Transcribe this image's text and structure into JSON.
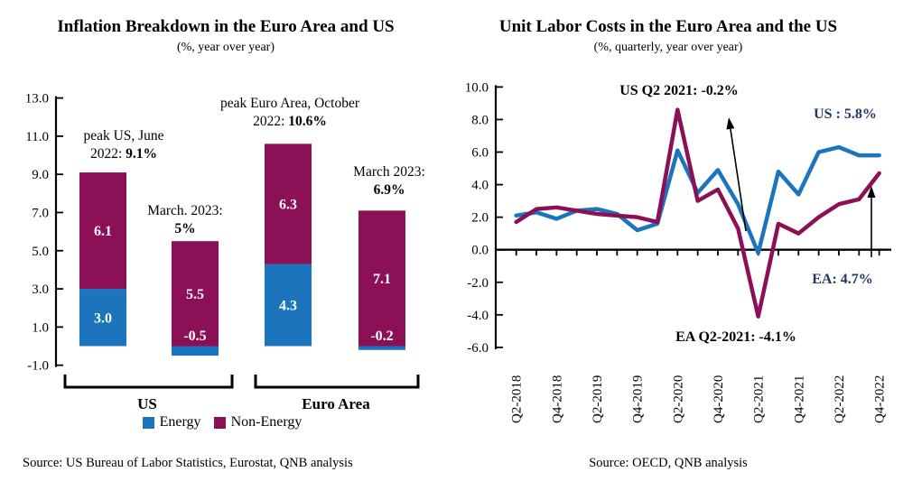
{
  "colors": {
    "energy_blue": "#1C75BC",
    "non_energy_magenta": "#8C1056",
    "navy_text": "#1F3864",
    "axis_black": "#000000"
  },
  "chart_data": [
    {
      "type": "bar",
      "stacked": true,
      "title": "Inflation Breakdown in the Euro Area and US",
      "subtitle": "(%, year over year)",
      "categories": [
        "US peak, June 2022",
        "US, March 2023",
        "Euro Area peak, October 2022",
        "Euro Area, March 2023"
      ],
      "group_labels": [
        "US",
        "Euro Area"
      ],
      "series": [
        {
          "name": "Energy",
          "color": "#1C75BC",
          "values": [
            3.0,
            -0.5,
            4.3,
            -0.2
          ]
        },
        {
          "name": "Non-Energy",
          "color": "#8C1056",
          "values": [
            6.1,
            5.5,
            6.3,
            7.1
          ]
        }
      ],
      "totals": [
        9.1,
        5.0,
        10.6,
        6.9
      ],
      "bar_value_labels": [
        [
          "3.0",
          "6.1"
        ],
        [
          "-0.5",
          "5.5"
        ],
        [
          "4.3",
          "6.3"
        ],
        [
          "-0.2",
          "7.1"
        ]
      ],
      "y_tick_labels": [
        "13.0",
        "11.0",
        "9.0",
        "7.0",
        "5.0",
        "3.0",
        "1.0",
        "-1.0"
      ],
      "ylim": [
        -1.0,
        13.0
      ],
      "grid": false,
      "legend_position": "bottom",
      "annotations": [
        {
          "line1": "peak US, June",
          "line2_prefix": "2022: ",
          "line2_bold": "9.1%"
        },
        {
          "line1": "March. 2023:",
          "line2_prefix": "",
          "line2_bold": "5%"
        },
        {
          "line1": "peak Euro Area, October",
          "line2_prefix": "2022: ",
          "line2_bold": "10.6%"
        },
        {
          "line1": "March 2023:",
          "line2_prefix": "",
          "line2_bold": "6.9%"
        }
      ],
      "source": "Source: US Bureau of Labor Statistics, Eurostat, QNB analysis"
    },
    {
      "type": "line",
      "title": "Unit Labor Costs in the Euro Area and the US",
      "subtitle": "(%, quarterly, year over year)",
      "x": [
        "Q2-2018",
        "Q3-2018",
        "Q4-2018",
        "Q1-2019",
        "Q2-2019",
        "Q3-2019",
        "Q4-2019",
        "Q1-2020",
        "Q2-2020",
        "Q3-2020",
        "Q4-2020",
        "Q1-2021",
        "Q2-2021",
        "Q3-2021",
        "Q4-2021",
        "Q1-2022",
        "Q2-2022",
        "Q3-2022",
        "Q4-2022"
      ],
      "x_tick_labels": [
        "Q2-2018",
        "Q4-2018",
        "Q2-2019",
        "Q4-2019",
        "Q2-2020",
        "Q4-2020",
        "Q2-2021",
        "Q4-2021",
        "Q2-2022",
        "Q4-2022"
      ],
      "series": [
        {
          "name": "US",
          "color": "#1C75BC",
          "values": [
            2.1,
            2.3,
            1.9,
            2.4,
            2.5,
            2.2,
            1.2,
            1.6,
            6.1,
            3.5,
            4.9,
            2.8,
            -0.2,
            4.8,
            3.4,
            6.0,
            6.3,
            5.8,
            5.8
          ]
        },
        {
          "name": "EA",
          "color": "#8C1056",
          "values": [
            1.7,
            2.5,
            2.6,
            2.4,
            2.2,
            2.1,
            2.0,
            1.7,
            8.6,
            3.0,
            3.7,
            1.3,
            -4.1,
            1.6,
            1.0,
            2.0,
            2.8,
            3.1,
            4.7
          ]
        }
      ],
      "y_tick_labels": [
        "10.0",
        "8.0",
        "6.0",
        "4.0",
        "2.0",
        "0.0",
        "-2.0",
        "-4.0",
        "-6.0"
      ],
      "ylim": [
        -6.0,
        10.0
      ],
      "grid": false,
      "annotations": [
        {
          "text": "US Q2 2021: -0.2%",
          "color": "#000000"
        },
        {
          "text": "US : 5.8%",
          "color": "#1F3864"
        },
        {
          "text": "EA: 4.7%",
          "color": "#1F3864"
        },
        {
          "text": "EA Q2-2021: -4.1%",
          "color": "#000000"
        }
      ],
      "source": "Source: OECD, QNB analysis"
    }
  ]
}
